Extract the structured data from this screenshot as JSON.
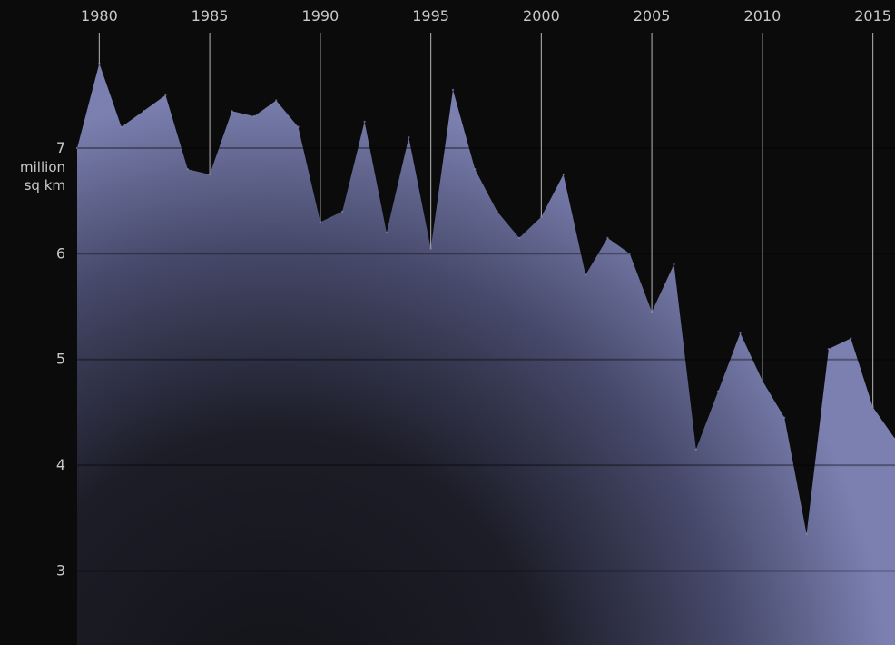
{
  "chart_data": {
    "type": "area",
    "title": "",
    "xlabel": "",
    "ylabel": "",
    "y_unit_lines": [
      "million",
      "sq km"
    ],
    "x_ticks": [
      1980,
      1985,
      1990,
      1995,
      2000,
      2005,
      2010,
      2015
    ],
    "y_ticks": [
      3,
      4,
      5,
      6,
      7
    ],
    "xlim": [
      1979,
      2016
    ],
    "ylim": [
      2.3,
      8.4
    ],
    "grid": "horizontal lines at y ticks, vertical lines at x ticks",
    "legend": "none",
    "colors": {
      "background": "#0b0b0b",
      "area": "#7b80b0",
      "text": "#c9c9c9"
    },
    "x": [
      1979,
      1980,
      1981,
      1982,
      1983,
      1984,
      1985,
      1986,
      1987,
      1988,
      1989,
      1990,
      1991,
      1992,
      1993,
      1994,
      1995,
      1996,
      1997,
      1998,
      1999,
      2000,
      2001,
      2002,
      2003,
      2004,
      2005,
      2006,
      2007,
      2008,
      2009,
      2010,
      2011,
      2012,
      2013,
      2014,
      2015,
      2016
    ],
    "values": [
      7.0,
      7.8,
      7.2,
      7.35,
      7.5,
      6.8,
      6.75,
      7.35,
      7.3,
      7.45,
      7.2,
      6.3,
      6.4,
      7.25,
      6.2,
      7.1,
      6.05,
      7.55,
      6.8,
      6.4,
      6.15,
      6.35,
      6.75,
      5.8,
      6.15,
      6.0,
      5.45,
      5.9,
      4.15,
      4.7,
      5.25,
      4.8,
      4.45,
      3.35,
      5.1,
      5.2,
      4.55,
      4.25
    ]
  }
}
